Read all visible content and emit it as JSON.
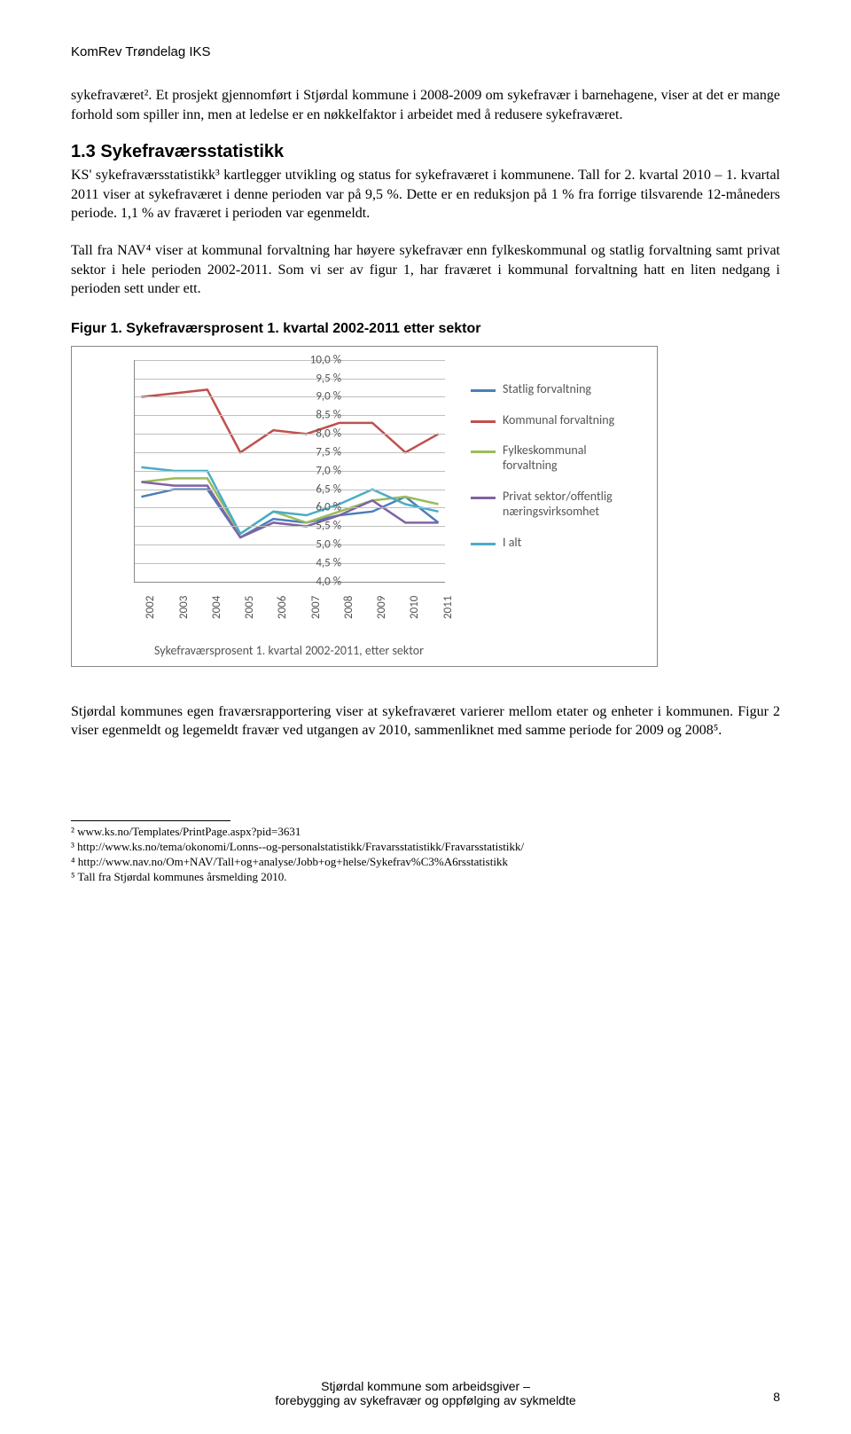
{
  "header_org": "KomRev Trøndelag IKS",
  "para1": "sykefraværet². Et prosjekt gjennomført i Stjørdal kommune i 2008-2009 om sykefravær i barnehagene, viser at det er mange forhold som spiller inn, men at ledelse er en nøkkelfaktor i arbeidet med å redusere sykefraværet.",
  "section_heading": "1.3 Sykefraværsstatistikk",
  "para2": "KS' sykefraværsstatistikk³ kartlegger utvikling og status for sykefraværet i kommunene. Tall for 2. kvartal 2010 – 1. kvartal 2011 viser at sykefraværet i denne perioden var på 9,5 %. Dette er en reduksjon på 1 % fra forrige tilsvarende 12-måneders periode. 1,1 % av fraværet i perioden var egenmeldt.",
  "para3": "Tall fra NAV⁴ viser at kommunal forvaltning har høyere sykefravær enn fylkeskommunal og statlig forvaltning samt privat sektor i hele perioden 2002-2011. Som vi ser av figur 1, har fraværet i kommunal forvaltning hatt en liten nedgang i perioden sett under ett.",
  "fig_title": "Figur 1. Sykefraværsprosent 1. kvartal 2002-2011 etter sektor",
  "chart": {
    "type": "line",
    "y_min": 4.0,
    "y_max": 10.0,
    "y_step": 0.5,
    "y_labels": [
      "10,0 %",
      "9,5 %",
      "9,0 %",
      "8,5 %",
      "8,0 %",
      "7,5 %",
      "7,0 %",
      "6,5 %",
      "6,0 %",
      "5,5 %",
      "5,0 %",
      "4,5 %",
      "4,0 %"
    ],
    "x_labels": [
      "2002",
      "2003",
      "2004",
      "2005",
      "2006",
      "2007",
      "2008",
      "2009",
      "2010",
      "2011"
    ],
    "series": [
      {
        "name": "Statlig forvaltning",
        "color": "#4a7ebb",
        "values": [
          6.3,
          6.5,
          6.5,
          5.2,
          5.7,
          5.6,
          5.8,
          5.9,
          6.3,
          5.6
        ]
      },
      {
        "name": "Kommunal forvaltning",
        "color": "#c0504d",
        "values": [
          9.0,
          9.1,
          9.2,
          7.5,
          8.1,
          8.0,
          8.3,
          8.3,
          7.5,
          8.0
        ]
      },
      {
        "name": "Fylkeskommunal forvaltning",
        "color": "#9bbb59",
        "values": [
          6.7,
          6.8,
          6.8,
          5.3,
          5.9,
          5.6,
          5.9,
          6.2,
          6.3,
          6.1
        ]
      },
      {
        "name": "Privat sektor/offentlig næringsvirksomhet",
        "color": "#8064a2",
        "values": [
          6.7,
          6.6,
          6.6,
          5.2,
          5.6,
          5.5,
          5.8,
          6.2,
          5.6,
          5.6
        ]
      },
      {
        "name": "I alt",
        "color": "#4bacc6",
        "values": [
          7.1,
          7.0,
          7.0,
          5.3,
          5.9,
          5.8,
          6.1,
          6.5,
          6.1,
          5.9
        ]
      }
    ],
    "legend_labels": [
      "Statlig forvaltning",
      "Kommunal forvaltning",
      "Fylkeskommunal forvaltning",
      "Privat sektor/offentlig næringsvirksomhet",
      "I alt"
    ],
    "caption": "Sykefraværsprosent 1. kvartal 2002-2011, etter sektor",
    "grid_color": "#bfbfbf",
    "line_width": 2.5
  },
  "para4": "Stjørdal kommunes egen fraværsrapportering viser at sykefraværet varierer mellom etater og enheter i kommunen. Figur 2 viser egenmeldt og legemeldt fravær ved utgangen av 2010, sammenliknet med samme periode for 2009 og 2008⁵.",
  "footnotes": [
    "² www.ks.no/Templates/PrintPage.aspx?pid=3631",
    "³ http://www.ks.no/tema/okonomi/Lonns--og-personalstatistikk/Fravarsstatistikk/Fravarsstatistikk/",
    "⁴ http://www.nav.no/Om+NAV/Tall+og+analyse/Jobb+og+helse/Sykefrav%C3%A6rsstatistikk",
    "⁵ Tall fra Stjørdal kommunes årsmelding 2010."
  ],
  "footer_line1": "Stjørdal kommune som arbeidsgiver –",
  "footer_line2": "forebygging av sykefravær og oppfølging av sykmeldte",
  "page_number": "8"
}
